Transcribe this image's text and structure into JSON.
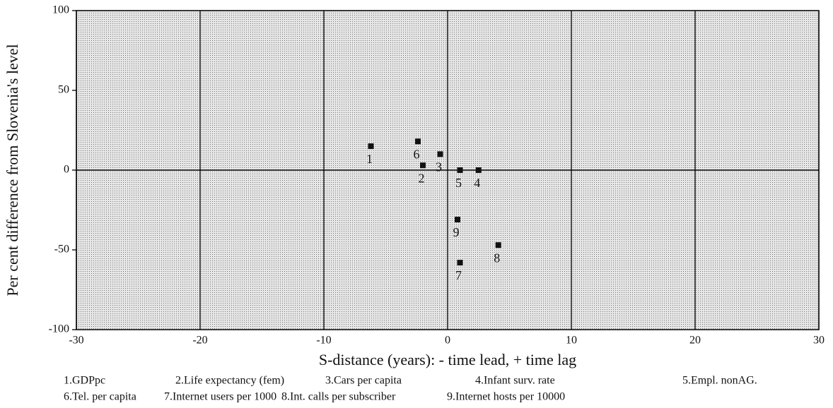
{
  "chart_data": {
    "type": "scatter",
    "xlabel": "S-distance (years): - time lead, + time lag",
    "ylabel": "Per cent difference from Slovenia's level",
    "x": [
      -6.2,
      -2.0,
      -0.6,
      2.5,
      1.0,
      -2.4,
      1.0,
      4.1,
      0.8
    ],
    "series": [
      {
        "color": "#111111",
        "values": [
          15,
          3,
          10,
          0,
          0,
          18,
          -58,
          -47,
          -31
        ],
        "labels": [
          "1",
          "2",
          "3",
          "4",
          "5",
          "6",
          "7",
          "8",
          "9"
        ]
      }
    ],
    "xlim": [
      -30,
      30
    ],
    "xticks": [
      -30,
      -20,
      -10,
      0,
      10,
      20,
      30
    ],
    "ylim": [
      -100,
      100
    ],
    "yticks": [
      -100,
      -50,
      0,
      50,
      100
    ],
    "xgrid": true,
    "legend_items": [
      [
        "1.GDPpc",
        "2.Life expectancy (fem)",
        "3.Cars per capita",
        "4.Infant surv. rate",
        "5.Empl. nonAG."
      ],
      [
        "6.Tel. per capita",
        "7.Internet users per 1000",
        "8.Int. calls per subscriber",
        "9.Internet hosts per 10000"
      ]
    ]
  }
}
